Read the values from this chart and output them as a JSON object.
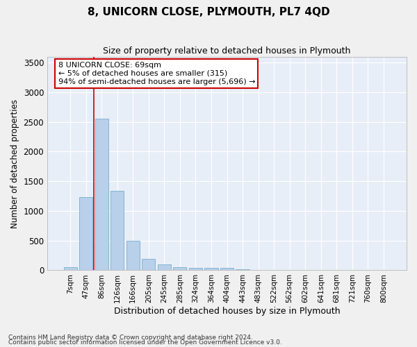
{
  "title": "8, UNICORN CLOSE, PLYMOUTH, PL7 4QD",
  "subtitle": "Size of property relative to detached houses in Plymouth",
  "xlabel": "Distribution of detached houses by size in Plymouth",
  "ylabel": "Number of detached properties",
  "bar_color": "#b8d0ea",
  "bar_edge_color": "#7aaecc",
  "background_color": "#e8eef8",
  "grid_color": "#ffffff",
  "categories": [
    "7sqm",
    "47sqm",
    "86sqm",
    "126sqm",
    "166sqm",
    "205sqm",
    "245sqm",
    "285sqm",
    "324sqm",
    "364sqm",
    "404sqm",
    "443sqm",
    "483sqm",
    "522sqm",
    "562sqm",
    "602sqm",
    "641sqm",
    "681sqm",
    "721sqm",
    "760sqm",
    "800sqm"
  ],
  "values": [
    50,
    1230,
    2560,
    1340,
    500,
    190,
    100,
    55,
    45,
    45,
    35,
    20,
    0,
    0,
    0,
    0,
    0,
    0,
    0,
    0,
    0
  ],
  "ylim": [
    0,
    3600
  ],
  "yticks": [
    0,
    500,
    1000,
    1500,
    2000,
    2500,
    3000,
    3500
  ],
  "annotation_text": "8 UNICORN CLOSE: 69sqm\n← 5% of detached houses are smaller (315)\n94% of semi-detached houses are larger (5,696) →",
  "annotation_box_color": "#ffffff",
  "annotation_box_edge_color": "#cc0000",
  "vline_x": 1.5,
  "vline_color": "#cc0000",
  "footnote1": "Contains HM Land Registry data © Crown copyright and database right 2024.",
  "footnote2": "Contains public sector information licensed under the Open Government Licence v3.0."
}
